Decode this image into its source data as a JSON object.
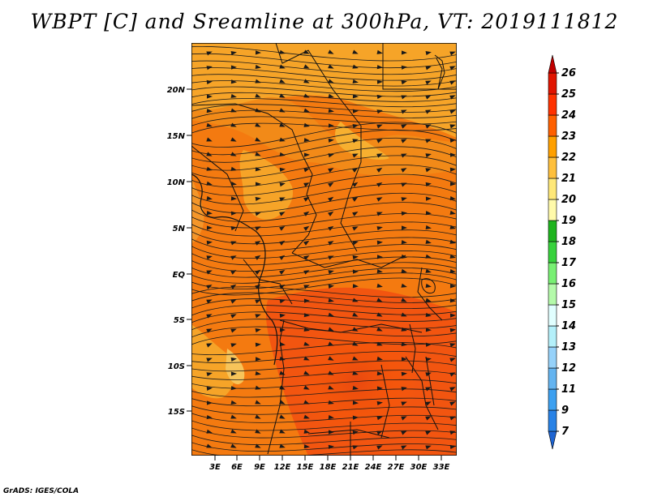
{
  "title": "WBPT [C] and Sreamline at 300hPa, VT: 2019111812",
  "credit": "GrADS: IGES/COLA",
  "map": {
    "lat_labels": [
      "20N",
      "15N",
      "10N",
      "5N",
      "EQ",
      "5S",
      "10S",
      "15S"
    ],
    "lon_labels": [
      "3E",
      "6E",
      "9E",
      "12E",
      "15E",
      "18E",
      "21E",
      "24E",
      "27E",
      "30E",
      "33E"
    ]
  },
  "colorbar": {
    "labels": [
      "7",
      "9",
      "11",
      "12",
      "13",
      "14",
      "15",
      "16",
      "17",
      "18",
      "19",
      "20",
      "21",
      "22",
      "23",
      "24",
      "25",
      "26"
    ],
    "colors": [
      "#1e64d2",
      "#2882e6",
      "#3ca0f0",
      "#64b4f0",
      "#96d2fa",
      "#b4f0fa",
      "#e1ffff",
      "#b4faaa",
      "#78f073",
      "#37d23c",
      "#1eb41e",
      "#fffaaa",
      "#ffe878",
      "#ffc03c",
      "#ffa000",
      "#ff6000",
      "#ff3200",
      "#e11400",
      "#c00000"
    ]
  }
}
